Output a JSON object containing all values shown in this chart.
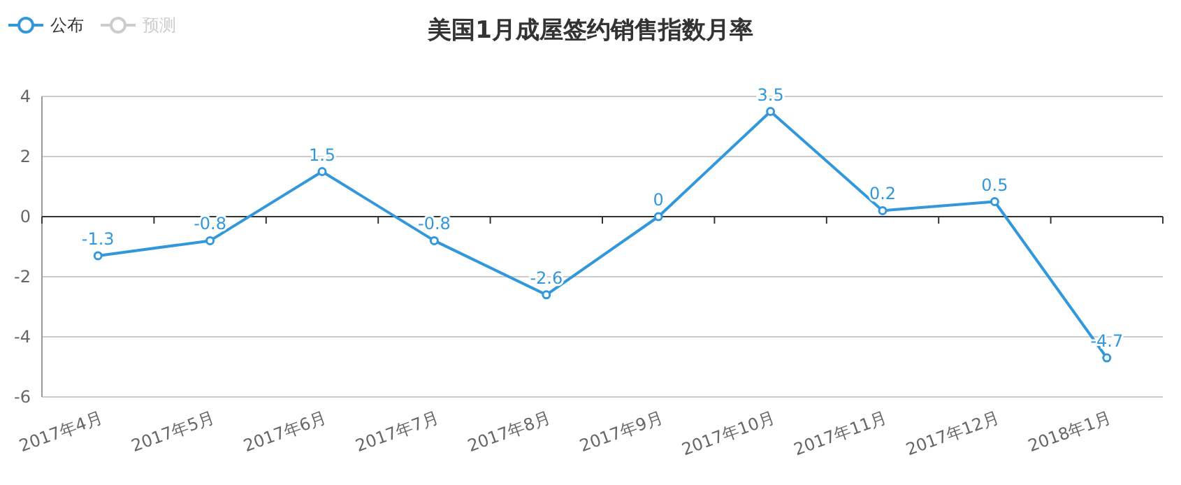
{
  "chart_data": {
    "type": "line",
    "title": "美国1月成屋签约销售指数月率",
    "categories": [
      "2017年4月",
      "2017年5月",
      "2017年6月",
      "2017年7月",
      "2017年8月",
      "2017年9月",
      "2017年10月",
      "2017年11月",
      "2017年12月",
      "2018年1月"
    ],
    "series": [
      {
        "name": "公布",
        "color": "#3398db",
        "values": [
          -1.3,
          -0.8,
          1.5,
          -0.8,
          -2.6,
          0,
          3.5,
          0.2,
          0.5,
          -4.7
        ]
      },
      {
        "name": "预测",
        "color": "#cccccc",
        "values": [
          null,
          null,
          null,
          null,
          null,
          null,
          null,
          null,
          null,
          null
        ]
      }
    ],
    "ylim": [
      -6,
      4
    ],
    "yticks": [
      -6,
      -4,
      -2,
      0,
      2,
      4
    ],
    "grid": "y",
    "legend": "top left",
    "marker": "circle",
    "data_labels": true
  }
}
